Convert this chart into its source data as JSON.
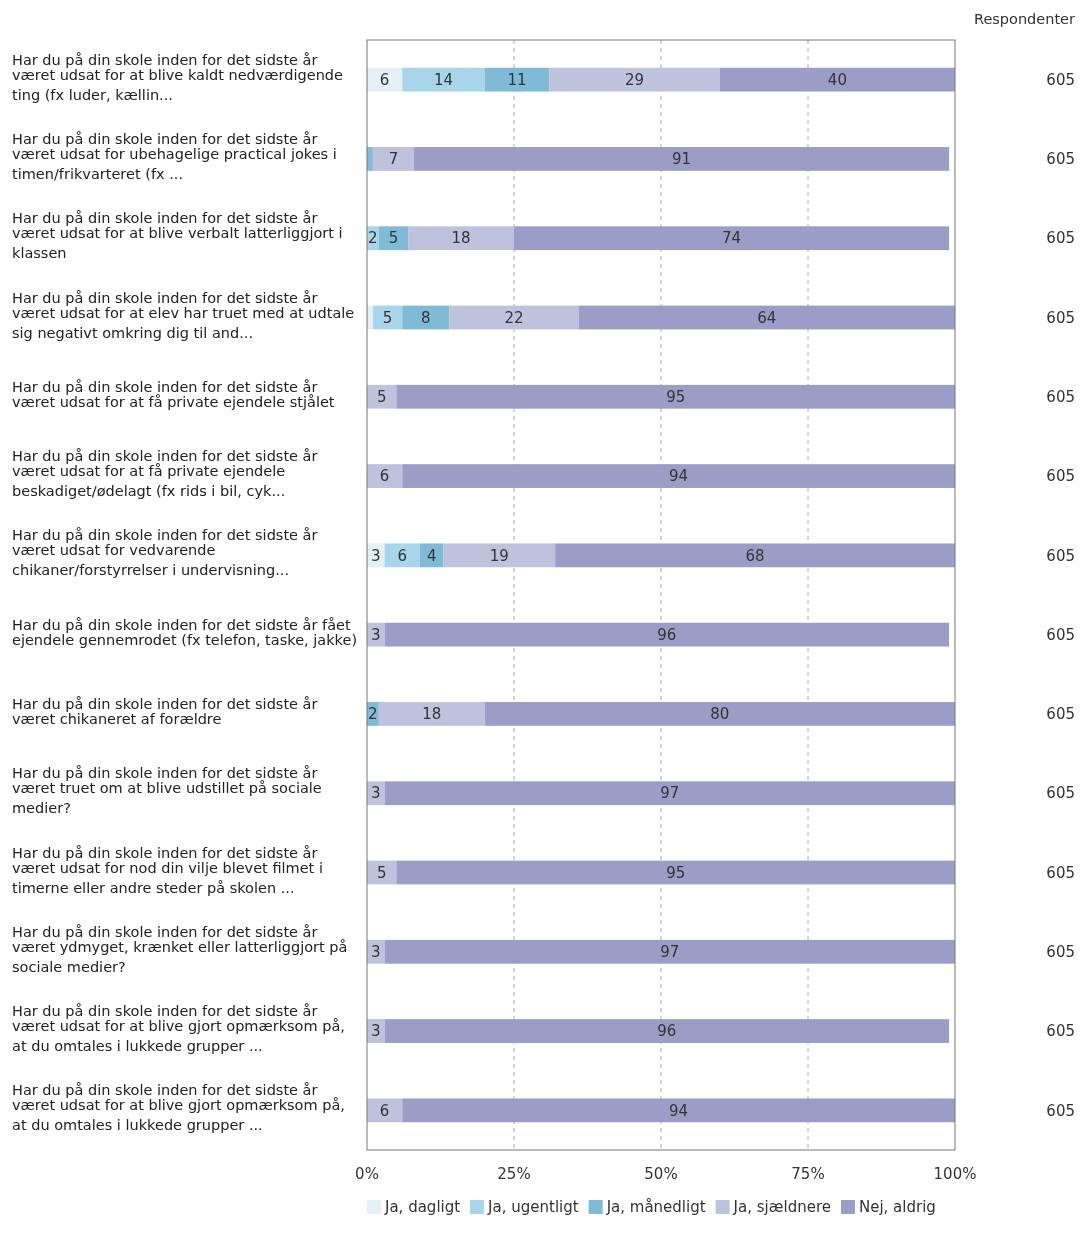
{
  "chart_data": {
    "type": "bar",
    "orientation": "horizontal",
    "stacked": true,
    "categories": [
      "Har du på din skole inden for det sidste år været udsat for at blive kaldt nedværdigende ting (fx luder, kællin...",
      "Har du på din skole inden for det sidste år været udsat for ubehagelige practical jokes i timen/frikvarteret (fx ...",
      "Har du på din skole inden for det sidste år været udsat for at blive verbalt latterliggjort i klassen",
      "Har du på din skole inden for det sidste år været udsat for at elev har truet med at udtale sig negativt omkring dig til and...",
      "Har du på din skole inden for det sidste år været udsat for at få private ejendele stjålet",
      "Har du på din skole inden for det sidste år været udsat for at få private ejendele beskadiget/ødelagt (fx rids i bil, cyk...",
      "Har du på din skole inden for det sidste år været udsat for vedvarende chikaner/forstyrrelser i undervisning...",
      "Har du på din skole inden for det sidste år fået ejendele gennemrodet (fx telefon, taske, jakke)",
      "Har du på din skole inden for det sidste år været chikaneret af forældre",
      "Har du på din skole inden for det sidste år været truet om at blive udstillet på sociale medier?",
      "Har du på din skole inden for det sidste år været udsat for nod din vilje blevet filmet i timerne eller andre steder på skolen ...",
      "Har du på din skole inden for det sidste år været ydmyget, krænket eller latterliggjort på sociale medier?",
      "Har du på din skole inden for det sidste år været udsat for at blive gjort opmærksom på, at du omtales i lukkede grupper ...",
      "Har du på din skole inden for det sidste år været udsat for at blive gjort opmærksom på, at du omtales i lukkede grupper ..."
    ],
    "series": [
      {
        "name": "Ja, dagligt",
        "color": "#e4eff6",
        "values": [
          6,
          null,
          null,
          1,
          null,
          null,
          3,
          null,
          null,
          null,
          null,
          null,
          null,
          null
        ],
        "value_labels": [
          "6",
          null,
          null,
          null,
          null,
          null,
          "3",
          null,
          null,
          null,
          null,
          null,
          null,
          null
        ]
      },
      {
        "name": "Ja, ugentligt",
        "color": "#a9d5ea",
        "values": [
          14,
          null,
          2,
          5,
          null,
          null,
          6,
          null,
          null,
          null,
          null,
          null,
          null,
          null
        ],
        "value_labels": [
          "14",
          null,
          "2",
          "5",
          null,
          null,
          "6",
          null,
          null,
          null,
          null,
          null,
          null,
          null
        ]
      },
      {
        "name": "Ja, månedligt",
        "color": "#7fbad6",
        "values": [
          11,
          1,
          5,
          8,
          null,
          null,
          4,
          null,
          2,
          null,
          null,
          null,
          null,
          null
        ],
        "value_labels": [
          "11",
          null,
          "5",
          "8",
          null,
          null,
          "4",
          null,
          "2",
          null,
          null,
          null,
          null,
          null
        ]
      },
      {
        "name": "Ja, sjældnere",
        "color": "#bec2dc",
        "values": [
          29,
          7,
          18,
          22,
          5,
          6,
          19,
          3,
          18,
          3,
          5,
          3,
          3,
          6
        ],
        "value_labels": [
          "29",
          "7",
          "18",
          "22",
          "5",
          "6",
          "19",
          "3",
          "18",
          "3",
          "5",
          "3",
          "3",
          "6"
        ]
      },
      {
        "name": "Nej, aldrig",
        "color": "#9b9dc7",
        "values": [
          40,
          91,
          74,
          64,
          95,
          94,
          68,
          96,
          80,
          97,
          95,
          97,
          96,
          94
        ],
        "value_labels": [
          "40",
          "91",
          "74",
          "64",
          "95",
          "94",
          "68",
          "96",
          "80",
          "97",
          "95",
          "97",
          "96",
          "94"
        ]
      }
    ],
    "xlim": [
      0,
      100
    ],
    "xticks": [
      {
        "value": 0,
        "label": "0%"
      },
      {
        "value": 25,
        "label": "25%"
      },
      {
        "value": 50,
        "label": "50%"
      },
      {
        "value": 75,
        "label": "75%"
      },
      {
        "value": 100,
        "label": "100%"
      }
    ],
    "grid": "x",
    "legend": "bottom",
    "annotations": [
      "Respondenter",
      "605",
      "605",
      "605",
      "605",
      "605",
      "605",
      "605",
      "605",
      "605",
      "605",
      "605",
      "605",
      "605",
      "605"
    ]
  }
}
